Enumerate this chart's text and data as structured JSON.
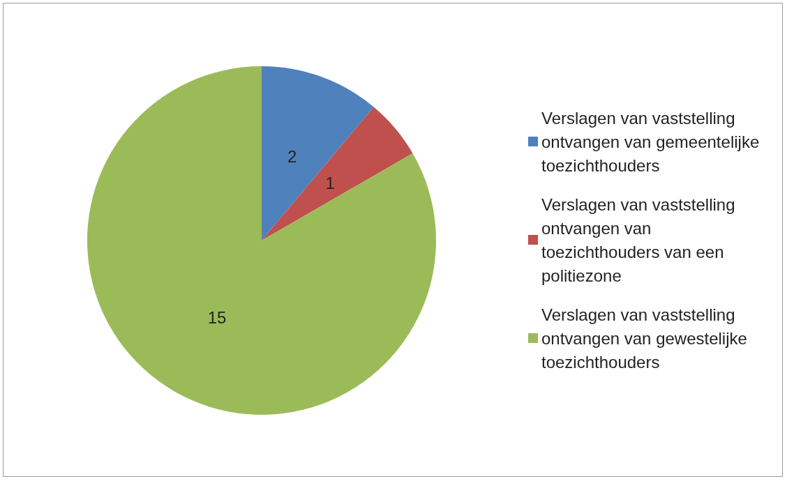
{
  "chart_data": {
    "type": "pie",
    "categories": [
      "Verslagen van vaststelling ontvangen van gemeentelijke toezichthouders",
      "Verslagen van vaststelling ontvangen van toezichthouders van een politiezone",
      "Verslagen van vaststelling ontvangen van gewestelijke toezichthouders"
    ],
    "values": [
      2,
      1,
      15
    ],
    "colors": [
      "#4f81bd",
      "#c0504d",
      "#9bbb59"
    ],
    "data_labels": true,
    "legend": "right"
  }
}
